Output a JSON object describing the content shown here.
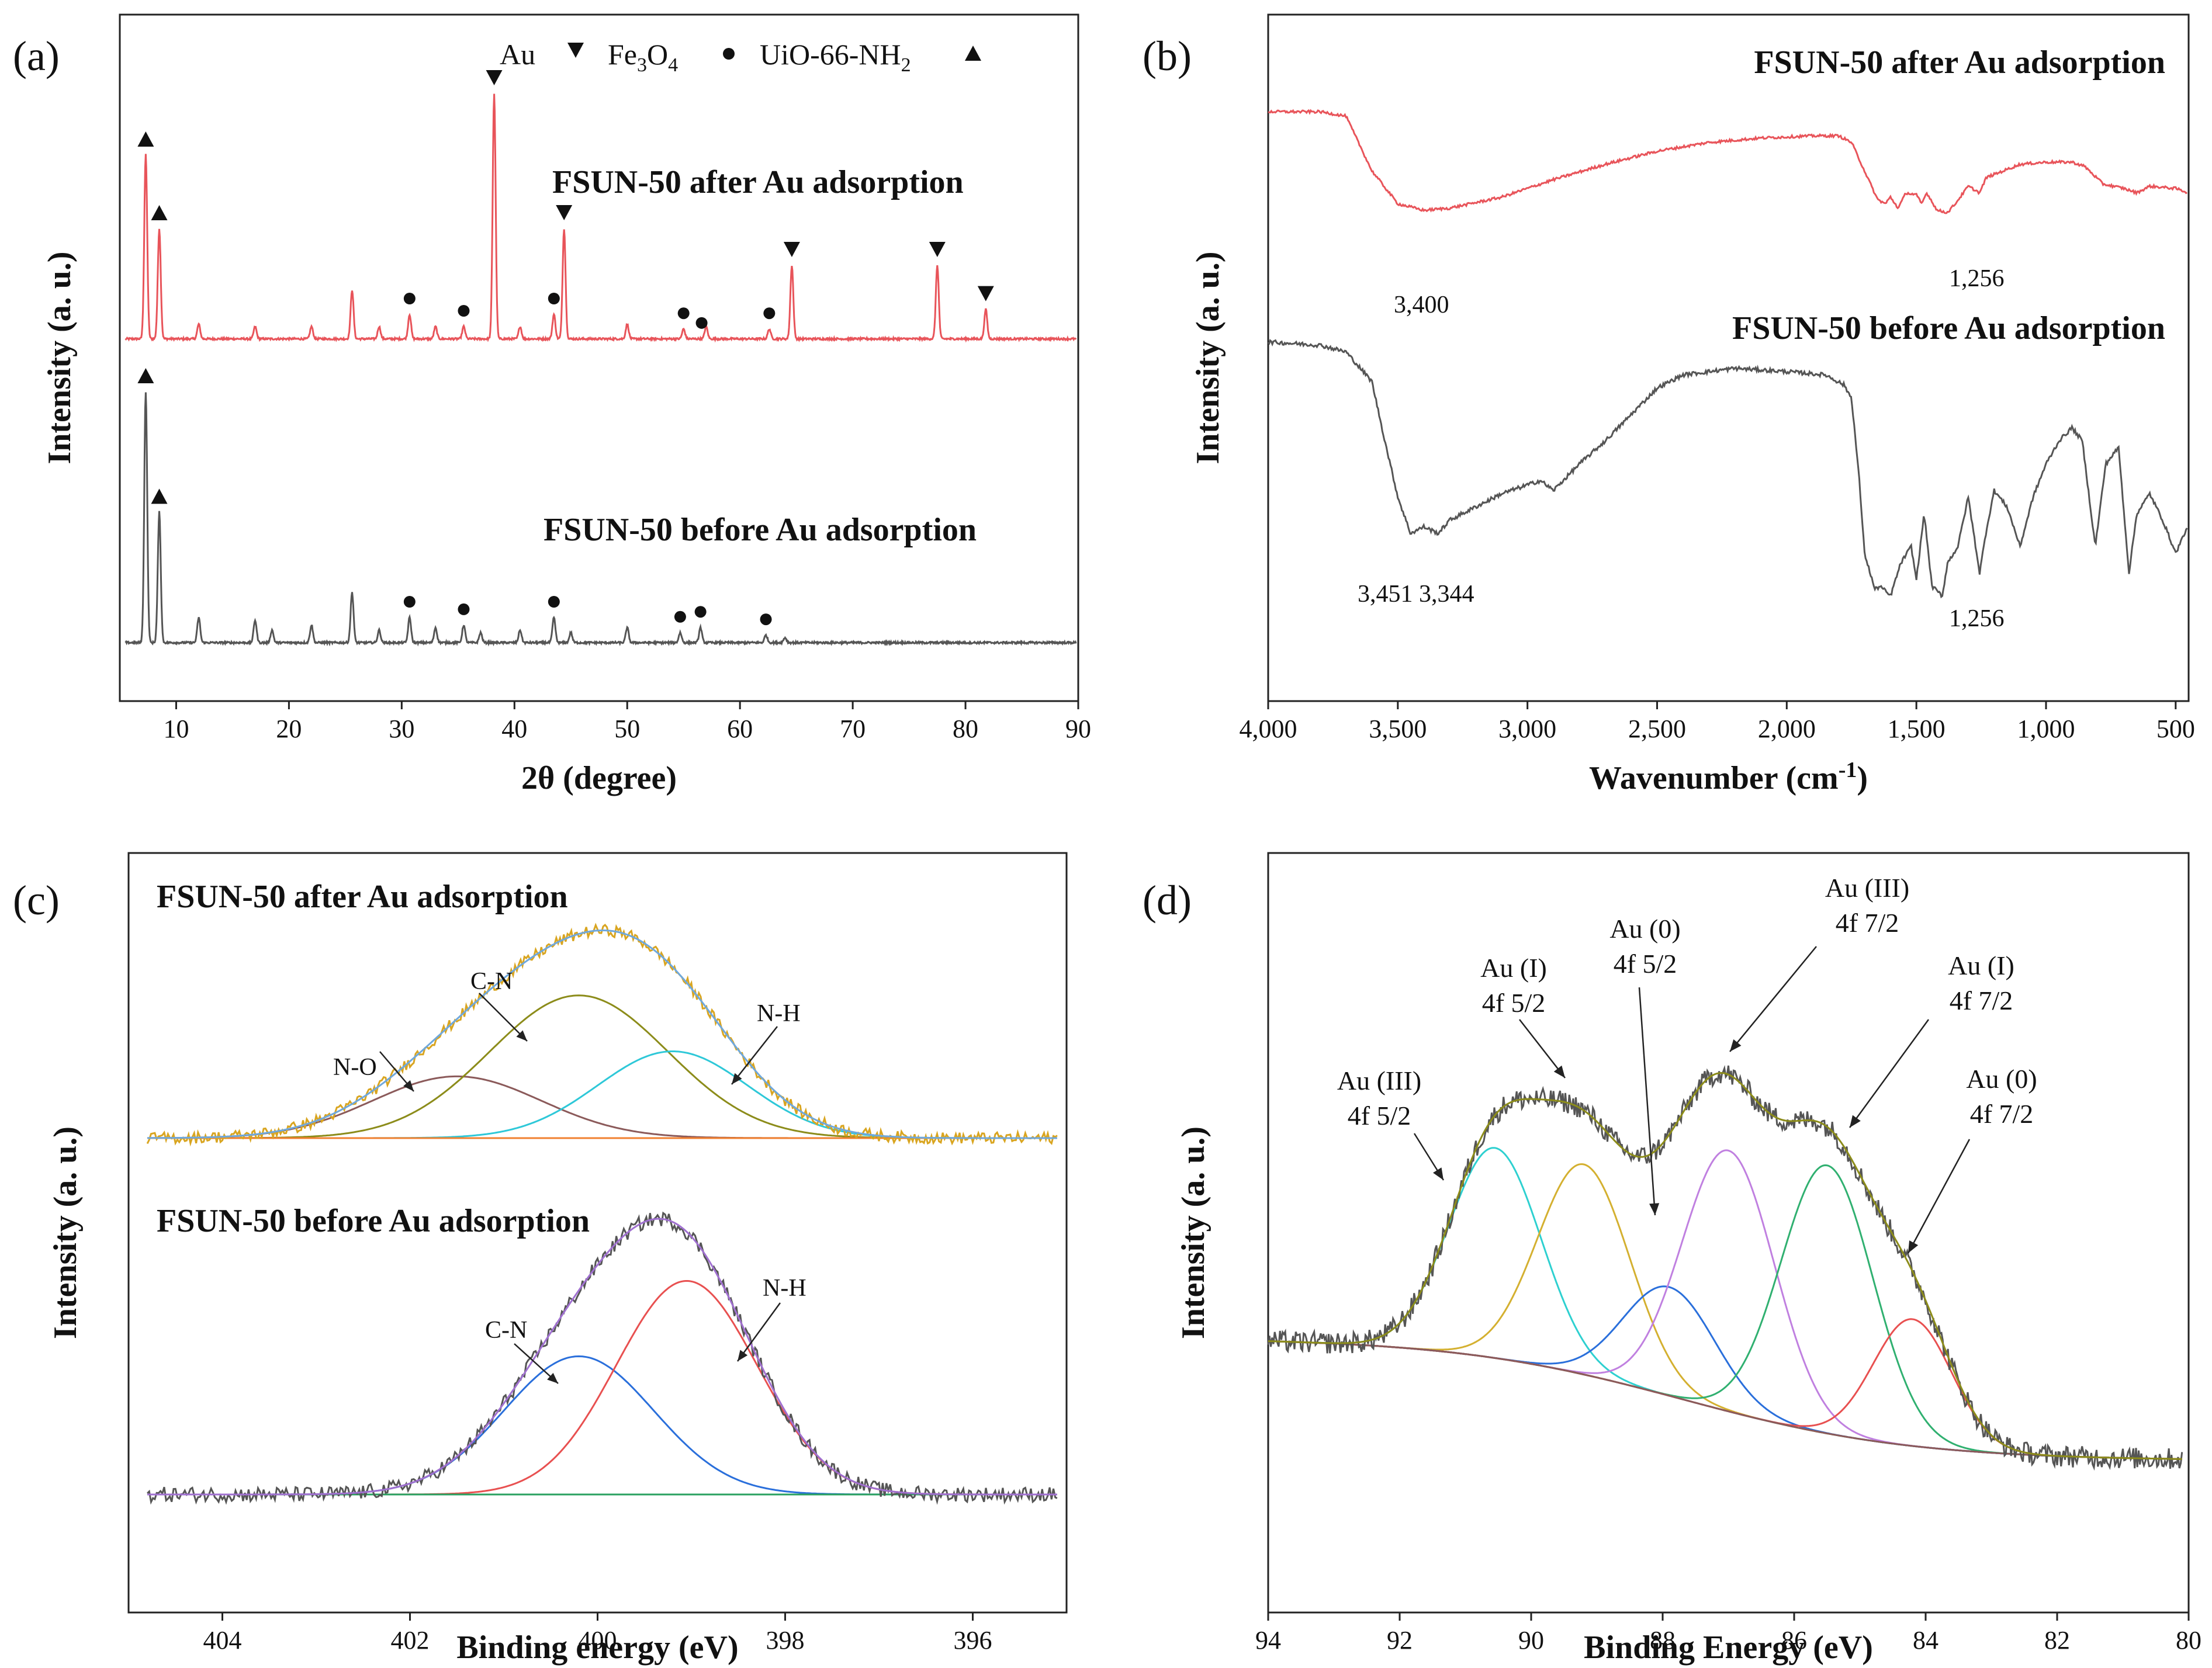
{
  "chart_data": [
    {
      "type": "line",
      "panel": "(a)",
      "xlabel": "2θ (degree)",
      "ylabel": "Intensity (a. u.)",
      "xlim": [
        5,
        90
      ],
      "xticks": [
        "10",
        "20",
        "30",
        "40",
        "50",
        "60",
        "70",
        "80",
        "90"
      ],
      "legend": {
        "au": "Au",
        "fe_main": "Fe",
        "fe_sub1": "3",
        "fe_o": "O",
        "fe_sub2": "4",
        "uio_main": "UiO-66-NH",
        "uio_sub": "2"
      },
      "series": [
        {
          "name": "FSUN-50 after Au adsorption",
          "color": "#e8545a",
          "peaks": [
            [
              7.3,
              0.75
            ],
            [
              8.5,
              0.45
            ],
            [
              12,
              0.06
            ],
            [
              17,
              0.05
            ],
            [
              22,
              0.05
            ],
            [
              25.6,
              0.2
            ],
            [
              28,
              0.05
            ],
            [
              30.7,
              0.1
            ],
            [
              33,
              0.05
            ],
            [
              35.5,
              0.05
            ],
            [
              38.2,
              1.0
            ],
            [
              40.5,
              0.05
            ],
            [
              43.5,
              0.1
            ],
            [
              44.4,
              0.45
            ],
            [
              50,
              0.06
            ],
            [
              55,
              0.04
            ],
            [
              57,
              0.05
            ],
            [
              62.6,
              0.04
            ],
            [
              64.6,
              0.3
            ],
            [
              77.5,
              0.3
            ],
            [
              81.8,
              0.12
            ]
          ],
          "markers": [
            {
              "x": 7.3,
              "shape": "up"
            },
            {
              "x": 8.5,
              "shape": "up"
            },
            {
              "x": 30.7,
              "shape": "dot"
            },
            {
              "x": 35.5,
              "shape": "dot"
            },
            {
              "x": 38.2,
              "shape": "down"
            },
            {
              "x": 43.5,
              "shape": "dot"
            },
            {
              "x": 44.4,
              "shape": "down"
            },
            {
              "x": 55,
              "shape": "dot"
            },
            {
              "x": 56.6,
              "shape": "dot"
            },
            {
              "x": 62.6,
              "shape": "dot"
            },
            {
              "x": 64.6,
              "shape": "down"
            },
            {
              "x": 77.5,
              "shape": "down"
            },
            {
              "x": 81.8,
              "shape": "down"
            }
          ]
        },
        {
          "name": "FSUN-50 before Au adsorption",
          "color": "#555555",
          "peaks": [
            [
              7.3,
              1.0
            ],
            [
              8.5,
              0.52
            ],
            [
              12,
              0.1
            ],
            [
              17,
              0.09
            ],
            [
              18.5,
              0.05
            ],
            [
              22,
              0.07
            ],
            [
              25.6,
              0.2
            ],
            [
              28,
              0.05
            ],
            [
              30.7,
              0.1
            ],
            [
              33,
              0.06
            ],
            [
              35.5,
              0.07
            ],
            [
              37,
              0.04
            ],
            [
              40.5,
              0.05
            ],
            [
              43.5,
              0.1
            ],
            [
              45,
              0.04
            ],
            [
              50,
              0.06
            ],
            [
              54.7,
              0.04
            ],
            [
              56.5,
              0.06
            ],
            [
              62.3,
              0.03
            ],
            [
              64,
              0.02
            ]
          ],
          "markers": [
            {
              "x": 7.3,
              "shape": "up"
            },
            {
              "x": 8.5,
              "shape": "up"
            },
            {
              "x": 30.7,
              "shape": "dot"
            },
            {
              "x": 35.5,
              "shape": "dot"
            },
            {
              "x": 43.5,
              "shape": "dot"
            },
            {
              "x": 54.7,
              "shape": "dot"
            },
            {
              "x": 56.5,
              "shape": "dot"
            },
            {
              "x": 62.3,
              "shape": "dot"
            }
          ]
        }
      ]
    },
    {
      "type": "line",
      "panel": "(b)",
      "xlabel_main": "Wavenumber (cm",
      "xlabel_sup": "-1",
      "xlabel_end": ")",
      "ylabel": "Intensity (a. u.)",
      "xlim": [
        4000,
        450
      ],
      "xticks": [
        "4,000",
        "3,500",
        "3,000",
        "2,500",
        "2,000",
        "1,500",
        "1,000",
        "500"
      ],
      "series": [
        {
          "name": "FSUN-50 after Au adsorption",
          "color": "#e8545a",
          "points": [
            [
              4000,
              0.97
            ],
            [
              3800,
              0.97
            ],
            [
              3700,
              0.95
            ],
            [
              3600,
              0.7
            ],
            [
              3500,
              0.55
            ],
            [
              3400,
              0.52
            ],
            [
              3300,
              0.53
            ],
            [
              3100,
              0.58
            ],
            [
              2900,
              0.66
            ],
            [
              2700,
              0.73
            ],
            [
              2500,
              0.79
            ],
            [
              2300,
              0.83
            ],
            [
              2100,
              0.85
            ],
            [
              1900,
              0.86
            ],
            [
              1800,
              0.86
            ],
            [
              1750,
              0.83
            ],
            [
              1700,
              0.7
            ],
            [
              1650,
              0.57
            ],
            [
              1620,
              0.55
            ],
            [
              1600,
              0.58
            ],
            [
              1570,
              0.53
            ],
            [
              1540,
              0.6
            ],
            [
              1500,
              0.59
            ],
            [
              1480,
              0.55
            ],
            [
              1460,
              0.6
            ],
            [
              1420,
              0.52
            ],
            [
              1380,
              0.51
            ],
            [
              1350,
              0.55
            ],
            [
              1300,
              0.63
            ],
            [
              1256,
              0.6
            ],
            [
              1230,
              0.67
            ],
            [
              1100,
              0.73
            ],
            [
              1000,
              0.74
            ],
            [
              900,
              0.74
            ],
            [
              850,
              0.72
            ],
            [
              780,
              0.64
            ],
            [
              700,
              0.62
            ],
            [
              650,
              0.6
            ],
            [
              600,
              0.63
            ],
            [
              500,
              0.62
            ],
            [
              450,
              0.6
            ]
          ]
        },
        {
          "name": "FSUN-50 before Au adsorption",
          "color": "#555555",
          "points": [
            [
              4000,
              0.92
            ],
            [
              3800,
              0.91
            ],
            [
              3700,
              0.89
            ],
            [
              3600,
              0.8
            ],
            [
              3550,
              0.62
            ],
            [
              3500,
              0.45
            ],
            [
              3451,
              0.34
            ],
            [
              3400,
              0.36
            ],
            [
              3344,
              0.34
            ],
            [
              3300,
              0.38
            ],
            [
              3200,
              0.42
            ],
            [
              3100,
              0.46
            ],
            [
              2950,
              0.5
            ],
            [
              2900,
              0.47
            ],
            [
              2800,
              0.55
            ],
            [
              2700,
              0.62
            ],
            [
              2600,
              0.7
            ],
            [
              2500,
              0.78
            ],
            [
              2400,
              0.82
            ],
            [
              2300,
              0.83
            ],
            [
              2200,
              0.84
            ],
            [
              2000,
              0.83
            ],
            [
              1850,
              0.82
            ],
            [
              1780,
              0.79
            ],
            [
              1750,
              0.75
            ],
            [
              1720,
              0.5
            ],
            [
              1700,
              0.28
            ],
            [
              1660,
              0.17
            ],
            [
              1640,
              0.18
            ],
            [
              1600,
              0.15
            ],
            [
              1560,
              0.25
            ],
            [
              1520,
              0.3
            ],
            [
              1500,
              0.2
            ],
            [
              1470,
              0.4
            ],
            [
              1440,
              0.18
            ],
            [
              1400,
              0.15
            ],
            [
              1380,
              0.25
            ],
            [
              1340,
              0.3
            ],
            [
              1300,
              0.45
            ],
            [
              1256,
              0.22
            ],
            [
              1230,
              0.35
            ],
            [
              1200,
              0.47
            ],
            [
              1150,
              0.42
            ],
            [
              1100,
              0.3
            ],
            [
              1050,
              0.45
            ],
            [
              1000,
              0.55
            ],
            [
              950,
              0.62
            ],
            [
              900,
              0.66
            ],
            [
              860,
              0.62
            ],
            [
              810,
              0.3
            ],
            [
              770,
              0.55
            ],
            [
              720,
              0.6
            ],
            [
              680,
              0.22
            ],
            [
              650,
              0.4
            ],
            [
              600,
              0.46
            ],
            [
              550,
              0.38
            ],
            [
              500,
              0.28
            ],
            [
              460,
              0.35
            ]
          ]
        }
      ],
      "annotations": [
        {
          "text": "3,400",
          "x": 3400,
          "series": 0
        },
        {
          "text": "1,256",
          "x": 1256,
          "series": 0
        },
        {
          "text": "3,451 3,344",
          "x": 3400,
          "series": 1
        },
        {
          "text": "1,256",
          "x": 1256,
          "series": 1
        }
      ]
    },
    {
      "type": "line",
      "panel": "(c)",
      "xlabel": "Binding energy (eV)",
      "ylabel": "Intensity (a. u.)",
      "xlim": [
        405,
        395
      ],
      "xticks": [
        "404",
        "402",
        "400",
        "398",
        "396"
      ],
      "top": {
        "name": "FSUN-50 after Au adsorption",
        "components": [
          {
            "label": "N-O",
            "center": 401.5,
            "sigma": 0.9,
            "amp": 0.32,
            "color": "#8b5a5a"
          },
          {
            "label": "C-N",
            "center": 400.2,
            "sigma": 0.95,
            "amp": 0.74,
            "color": "#8c8c1a"
          },
          {
            "label": "N-H",
            "center": 399.2,
            "sigma": 0.8,
            "amp": 0.45,
            "color": "#2ec8d8"
          }
        ],
        "envelope_color": "#6fa8dc",
        "raw_color": "#d9a520"
      },
      "bottom": {
        "name": "FSUN-50 before Au adsorption",
        "components": [
          {
            "label": "C-N",
            "center": 400.2,
            "sigma": 0.8,
            "amp": 0.55,
            "color": "#2a6fdb"
          },
          {
            "label": "N-H",
            "center": 399.05,
            "sigma": 0.75,
            "amp": 0.85,
            "color": "#e85050"
          }
        ],
        "envelope_color": "#a070d0",
        "raw_color": "#555555",
        "baseline_color": "#2aa060"
      }
    },
    {
      "type": "line",
      "panel": "(d)",
      "xlabel": "Binding Energy (eV)",
      "ylabel": "Intensity (a. u.)",
      "xlim": [
        94,
        80
      ],
      "xticks": [
        "94",
        "92",
        "90",
        "88",
        "86",
        "84",
        "82",
        "80"
      ],
      "components": [
        {
          "label1": "Au (III)",
          "label2": "4f 5/2",
          "center": 90.55,
          "sigma": 0.7,
          "amp": 0.58,
          "color": "#2ed0d0"
        },
        {
          "label1": "Au (I)",
          "label2": "4f 5/2",
          "center": 89.2,
          "sigma": 0.7,
          "amp": 0.58,
          "color": "#d4b030"
        },
        {
          "label1": "Au (0)",
          "label2": "4f 5/2",
          "center": 87.9,
          "sigma": 0.7,
          "amp": 0.3,
          "color": "#2a6fdb"
        },
        {
          "label1": "Au (III)",
          "label2": "4f 7/2",
          "center": 87.0,
          "sigma": 0.7,
          "amp": 0.72,
          "color": "#c080e0"
        },
        {
          "label1": "Au (I)",
          "label2": "4f 7/2",
          "center": 85.5,
          "sigma": 0.7,
          "amp": 0.74,
          "color": "#30b070"
        },
        {
          "label1": "Au (0)",
          "label2": "4f 7/2",
          "center": 84.2,
          "sigma": 0.6,
          "amp": 0.35,
          "color": "#e85050"
        }
      ],
      "envelope_color": "#8c8c1a",
      "raw_color": "#555555",
      "baseline_color": "#8b5a5a"
    }
  ]
}
